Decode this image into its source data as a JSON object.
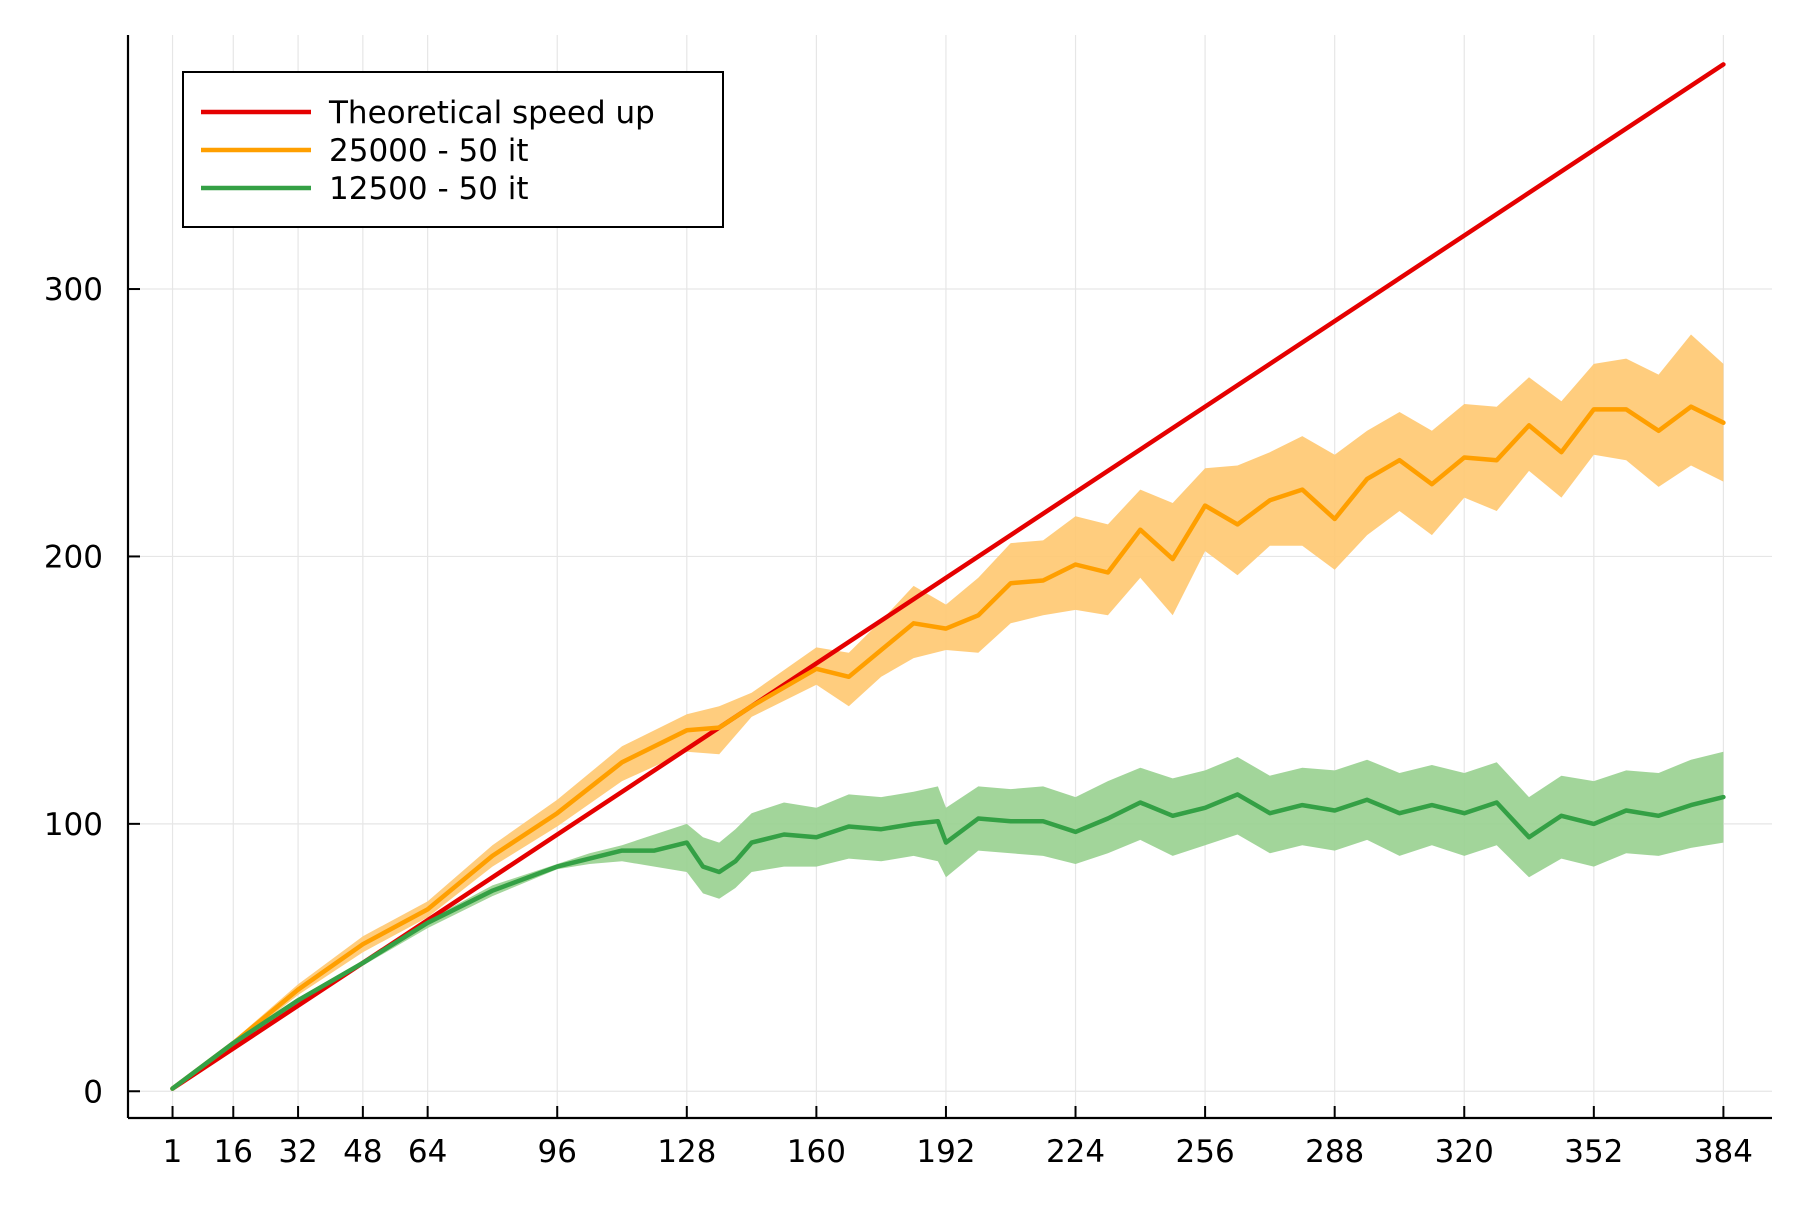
{
  "chart_data": {
    "type": "line",
    "title": "",
    "xlabel": "",
    "ylabel": "",
    "xlim": [
      -10,
      396
    ],
    "ylim": [
      -10,
      395
    ],
    "x_ticks": [
      1,
      16,
      32,
      48,
      64,
      96,
      128,
      160,
      192,
      224,
      256,
      288,
      320,
      352,
      384
    ],
    "y_ticks": [
      0,
      100,
      200,
      300
    ],
    "grid": true,
    "legend_position": "top-left",
    "series": [
      {
        "name": "Theoretical speed up",
        "color": "#e50000",
        "x": [
          1,
          384
        ],
        "y": [
          1,
          384
        ]
      },
      {
        "name": "25000 - 50 it",
        "color": "#ff9f00",
        "band_color": "#ffc870",
        "x": [
          1,
          16,
          32,
          48,
          64,
          80,
          96,
          112,
          128,
          136,
          144,
          160,
          168,
          176,
          184,
          192,
          200,
          208,
          216,
          224,
          232,
          240,
          248,
          256,
          264,
          272,
          280,
          288,
          296,
          304,
          312,
          320,
          328,
          336,
          344,
          352,
          360,
          368,
          376,
          384
        ],
        "y": [
          1,
          18,
          38,
          55,
          68,
          88,
          104,
          123,
          135,
          136,
          144,
          158,
          155,
          165,
          175,
          173,
          178,
          190,
          191,
          197,
          194,
          210,
          199,
          219,
          212,
          221,
          225,
          214,
          229,
          236,
          227,
          237,
          236,
          249,
          239,
          255,
          255,
          247,
          256,
          250
        ],
        "y_low": [
          1,
          17,
          36,
          52,
          65,
          84,
          99,
          116,
          127,
          126,
          140,
          152,
          144,
          155,
          162,
          165,
          164,
          175,
          178,
          180,
          178,
          192,
          178,
          202,
          193,
          204,
          204,
          195,
          208,
          217,
          208,
          222,
          217,
          232,
          222,
          238,
          236,
          226,
          234,
          228
        ],
        "y_high": [
          1,
          19,
          40,
          58,
          71,
          92,
          109,
          129,
          141,
          144,
          149,
          166,
          164,
          176,
          189,
          182,
          192,
          205,
          206,
          215,
          212,
          225,
          220,
          233,
          234,
          239,
          245,
          238,
          247,
          254,
          247,
          257,
          256,
          267,
          258,
          272,
          274,
          268,
          283,
          272
        ]
      },
      {
        "name": "12500 - 50 it",
        "color": "#34a045",
        "band_color": "#98d08f",
        "x": [
          1,
          16,
          32,
          48,
          64,
          80,
          96,
          104,
          112,
          120,
          128,
          132,
          136,
          140,
          144,
          152,
          160,
          168,
          176,
          184,
          190,
          192,
          200,
          208,
          216,
          224,
          232,
          240,
          248,
          256,
          264,
          272,
          280,
          288,
          296,
          304,
          312,
          320,
          328,
          336,
          344,
          352,
          360,
          368,
          376,
          384
        ],
        "y": [
          1,
          18,
          34,
          48,
          63,
          75,
          84,
          87,
          90,
          90,
          93,
          84,
          82,
          86,
          93,
          96,
          95,
          99,
          98,
          100,
          101,
          93,
          102,
          101,
          101,
          97,
          102,
          108,
          103,
          106,
          111,
          104,
          107,
          105,
          109,
          104,
          107,
          104,
          108,
          95,
          103,
          100,
          105,
          103,
          107,
          110
        ],
        "y_low": [
          1,
          17,
          33,
          47,
          61,
          73,
          83,
          85,
          86,
          84,
          82,
          74,
          72,
          76,
          82,
          84,
          84,
          87,
          86,
          88,
          86,
          80,
          90,
          89,
          88,
          85,
          89,
          94,
          88,
          92,
          96,
          89,
          92,
          90,
          94,
          88,
          92,
          88,
          92,
          80,
          87,
          84,
          89,
          88,
          91,
          93
        ],
        "y_high": [
          1,
          19,
          35,
          49,
          64,
          77,
          85,
          89,
          92,
          96,
          100,
          95,
          93,
          98,
          104,
          108,
          106,
          111,
          110,
          112,
          114,
          106,
          114,
          113,
          114,
          110,
          116,
          121,
          117,
          120,
          125,
          118,
          121,
          120,
          124,
          119,
          122,
          119,
          123,
          110,
          118,
          116,
          120,
          119,
          124,
          127
        ]
      }
    ]
  }
}
